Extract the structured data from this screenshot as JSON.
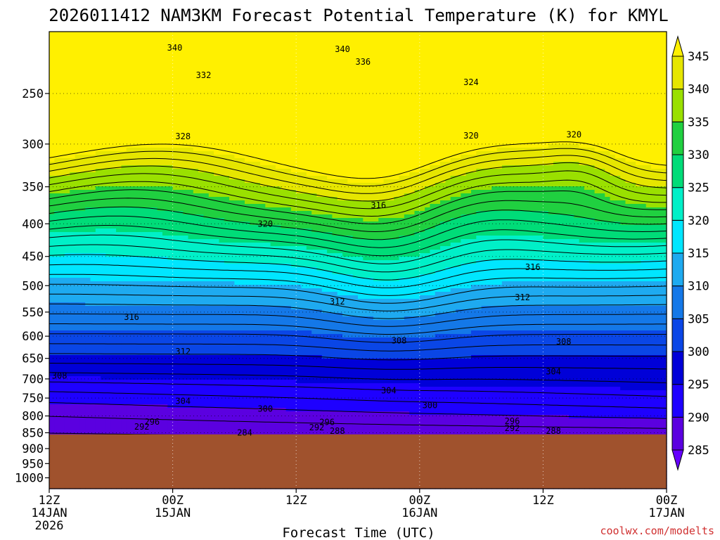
{
  "chart_data": {
    "type": "heatmap",
    "title": "2026011412 NAM3KM Forecast Potential Temperature (K) for KMYL",
    "xlabel": "Forecast Time (UTC)",
    "ylabel": "",
    "credit": "coolwx.com/modelts",
    "x_ticks": [
      {
        "line1": "12Z",
        "line2": "14JAN",
        "line3": "2026",
        "hours": 0
      },
      {
        "line1": "00Z",
        "line2": "15JAN",
        "line3": "",
        "hours": 12
      },
      {
        "line1": "12Z",
        "line2": "",
        "line3": "",
        "hours": 24
      },
      {
        "line1": "00Z",
        "line2": "16JAN",
        "line3": "",
        "hours": 36
      },
      {
        "line1": "12Z",
        "line2": "",
        "line3": "",
        "hours": 48
      },
      {
        "line1": "00Z",
        "line2": "17JAN",
        "line3": "",
        "hours": 60
      }
    ],
    "x_range_hours": [
      0,
      60
    ],
    "y_axis": "pressure (hPa), log scale, decreasing upward",
    "y_ticks": [
      250,
      300,
      350,
      400,
      450,
      500,
      550,
      600,
      650,
      700,
      750,
      800,
      850,
      900,
      950,
      1000
    ],
    "y_range": [
      1040,
      200
    ],
    "ground_pressure": 855,
    "grid": true,
    "colorbar": {
      "levels": [
        285,
        290,
        295,
        300,
        305,
        310,
        315,
        320,
        325,
        330,
        335,
        340,
        345
      ],
      "colors": [
        "#6600ff",
        "#5b00e0",
        "#1e00ff",
        "#0000d8",
        "#0a46e6",
        "#1478e8",
        "#1eaaf0",
        "#00e6ff",
        "#00f0c8",
        "#00dc78",
        "#20d040",
        "#9ae000",
        "#e6e600",
        "#fff000"
      ]
    },
    "ground_color": "#a0522d",
    "contour_labels": [
      {
        "label": "340",
        "hours": 12.2,
        "p": 212
      },
      {
        "label": "340",
        "hours": 28.5,
        "p": 213
      },
      {
        "label": "336",
        "hours": 30.5,
        "p": 223
      },
      {
        "label": "332",
        "hours": 15.0,
        "p": 234
      },
      {
        "label": "324",
        "hours": 41.0,
        "p": 240
      },
      {
        "label": "328",
        "hours": 13.0,
        "p": 292
      },
      {
        "label": "320",
        "hours": 41.0,
        "p": 291
      },
      {
        "label": "320",
        "hours": 51.0,
        "p": 290
      },
      {
        "label": "316",
        "hours": 32.0,
        "p": 374
      },
      {
        "label": "320",
        "hours": 21.0,
        "p": 400
      },
      {
        "label": "316",
        "hours": 47.0,
        "p": 468
      },
      {
        "label": "312",
        "hours": 28.0,
        "p": 530
      },
      {
        "label": "312",
        "hours": 46.0,
        "p": 522
      },
      {
        "label": "316",
        "hours": 8.0,
        "p": 560
      },
      {
        "label": "308",
        "hours": 34.0,
        "p": 610
      },
      {
        "label": "308",
        "hours": 50.0,
        "p": 612
      },
      {
        "label": "312",
        "hours": 13.0,
        "p": 634
      },
      {
        "label": "304",
        "hours": 49.0,
        "p": 682
      },
      {
        "label": "308",
        "hours": 1.0,
        "p": 692
      },
      {
        "label": "304",
        "hours": 33.0,
        "p": 730
      },
      {
        "label": "304",
        "hours": 13.0,
        "p": 758
      },
      {
        "label": "300",
        "hours": 21.0,
        "p": 780
      },
      {
        "label": "300",
        "hours": 37.0,
        "p": 770
      },
      {
        "label": "296",
        "hours": 10.0,
        "p": 817
      },
      {
        "label": "296",
        "hours": 27.0,
        "p": 818
      },
      {
        "label": "296",
        "hours": 45.0,
        "p": 815
      },
      {
        "label": "292",
        "hours": 9.0,
        "p": 832
      },
      {
        "label": "292",
        "hours": 26.0,
        "p": 834
      },
      {
        "label": "288",
        "hours": 28.0,
        "p": 845
      },
      {
        "label": "292",
        "hours": 45.0,
        "p": 836
      },
      {
        "label": "288",
        "hours": 49.0,
        "p": 845
      },
      {
        "label": "284",
        "hours": 19.0,
        "p": 850
      }
    ]
  }
}
